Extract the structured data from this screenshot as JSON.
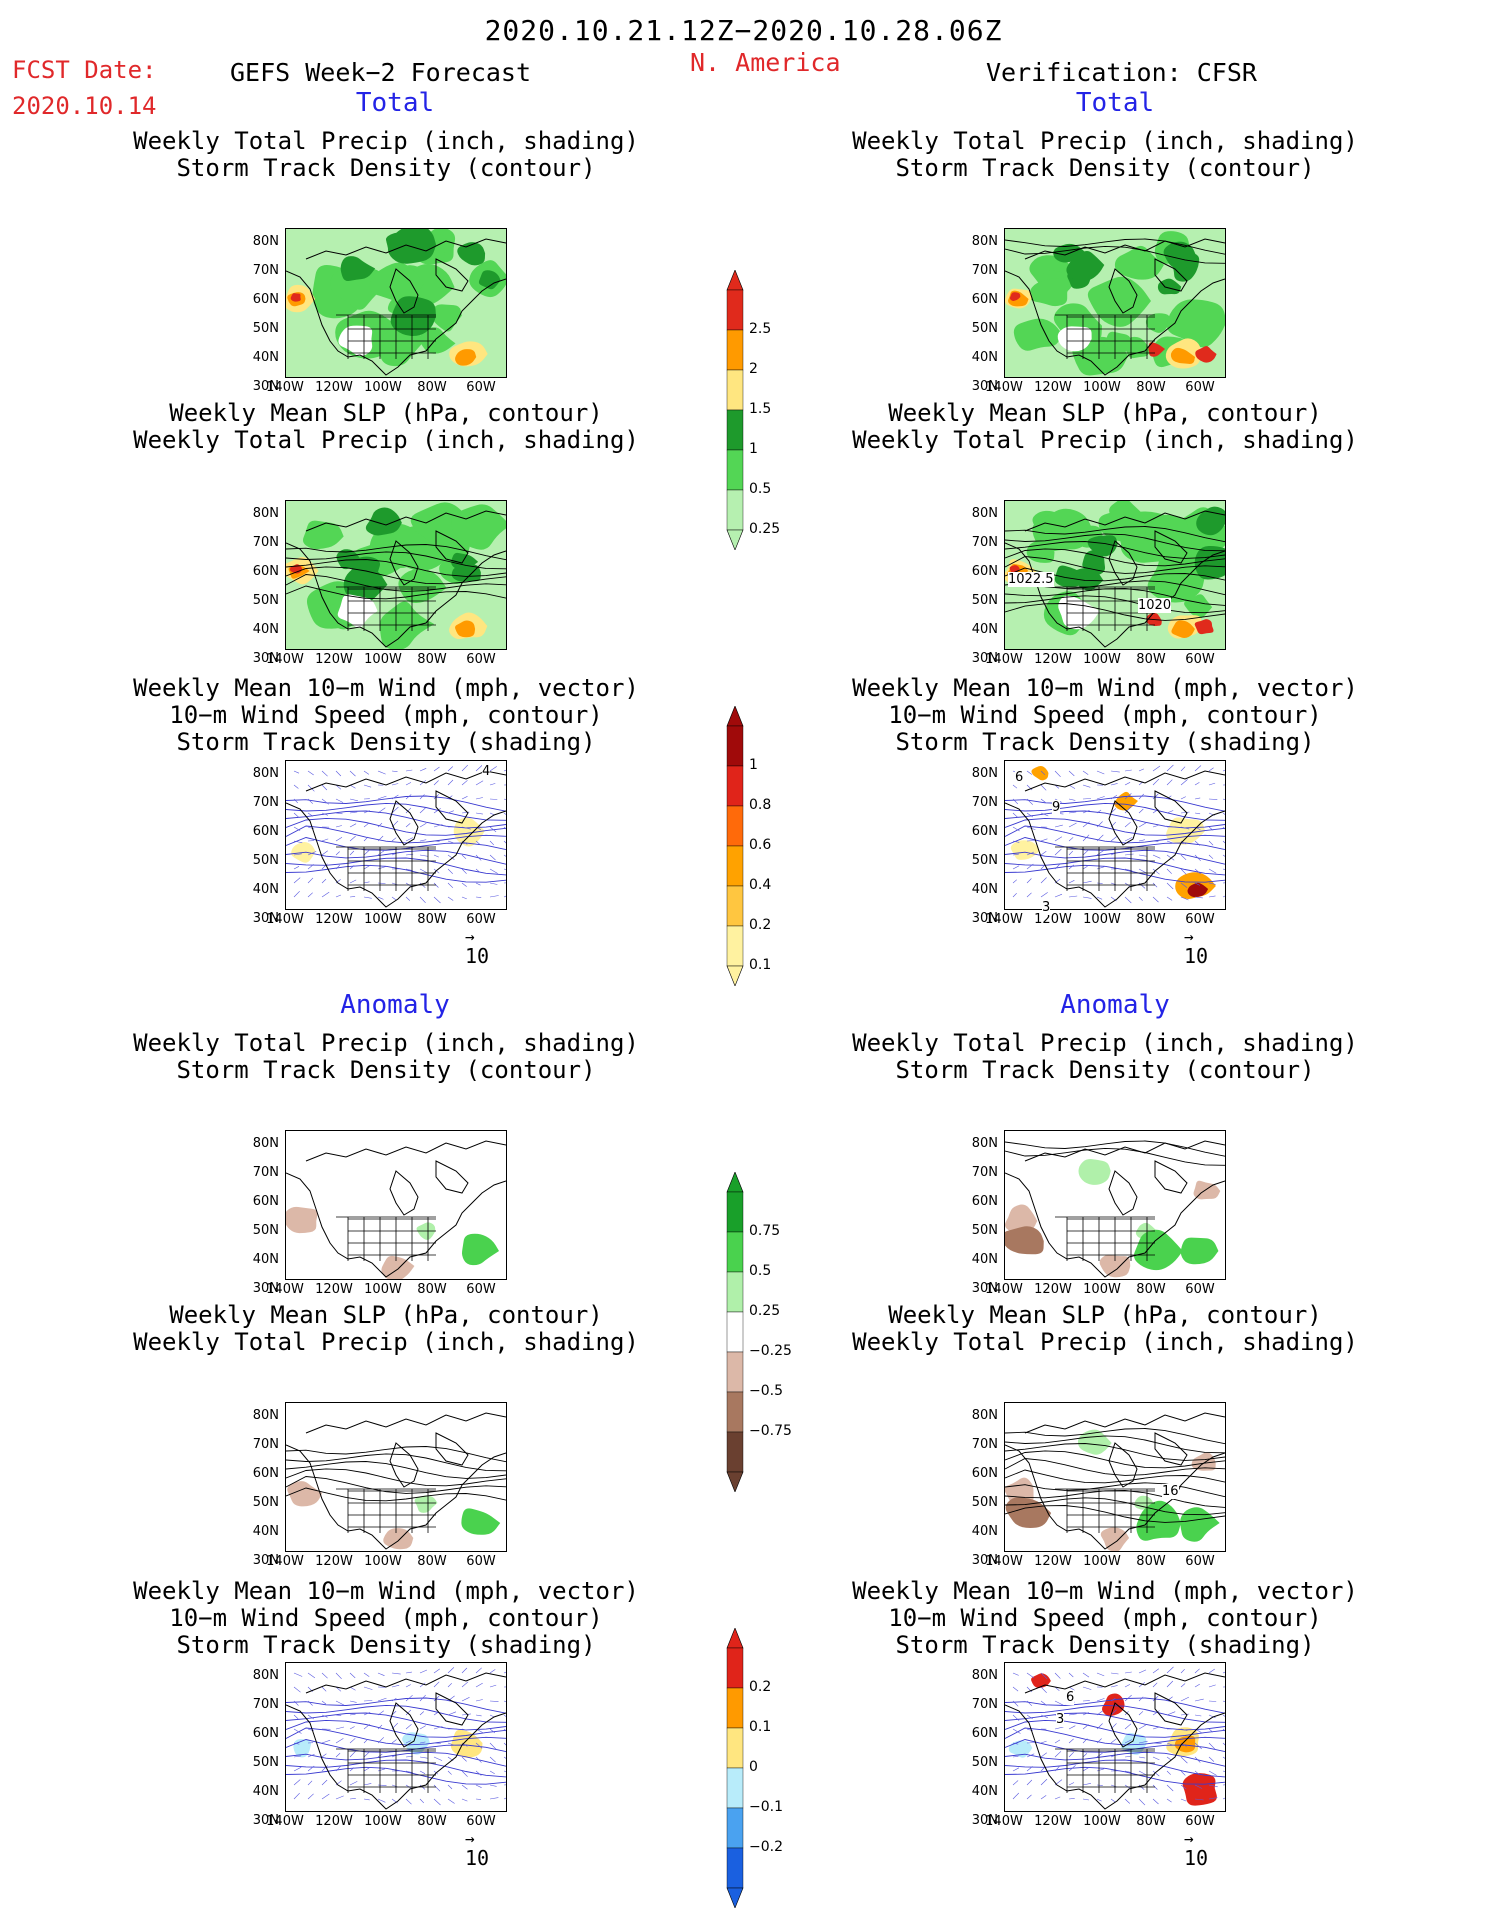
{
  "header": {
    "date_range": "2020.10.21.12Z−2020.10.28.06Z",
    "fcst_label": "FCST Date:",
    "fcst_date": "2020.10.14",
    "forecast_title": "GEFS Week−2 Forecast",
    "region": "N. America",
    "verification": "Verification: CFSR"
  },
  "sections": {
    "total": "Total",
    "anomaly": "Anomaly"
  },
  "titles": {
    "precip_storm": [
      "Weekly Total Precip (inch, shading)",
      "Storm Track Density (contour)"
    ],
    "slp_precip": [
      "Weekly Mean SLP (hPa, contour)",
      "Weekly Total Precip (inch, shading)"
    ],
    "wind_storm": [
      "Weekly Mean 10−m Wind (mph, vector)",
      "10−m Wind Speed (mph, contour)",
      "Storm Track Density (shading)"
    ]
  },
  "axes": {
    "lat": [
      "80N",
      "70N",
      "60N",
      "50N",
      "40N",
      "30N"
    ],
    "lon": [
      "140W",
      "120W",
      "100W",
      "80W",
      "60W"
    ]
  },
  "contour_labels": {
    "slp_total_cfsr": [
      "1022.5",
      "1020"
    ],
    "slp_anom_cfsr": [
      "16"
    ],
    "wind_total_cfsr": [
      "6",
      "9",
      "3"
    ],
    "wind_total_gefs": [
      "4"
    ],
    "wind_anom_cfsr": [
      "6",
      "3"
    ]
  },
  "vector_reference": "10",
  "colorbars": {
    "precip_total": {
      "labels": [
        "2.5",
        "2",
        "1.5",
        "1",
        "0.5",
        "0.25"
      ],
      "colors": [
        "#e02a1c",
        "#ff9a00",
        "#ffe680",
        "#1e9a2c",
        "#53d655",
        "#b6f0b0"
      ]
    },
    "storm_total": {
      "labels": [
        "1",
        "0.8",
        "0.6",
        "0.4",
        "0.2",
        "0.1"
      ],
      "colors": [
        "#a00a0a",
        "#e0241a",
        "#ff6a0a",
        "#ffa200",
        "#ffc640",
        "#fff2a0"
      ]
    },
    "precip_anom": {
      "labels": [
        "0.75",
        "0.5",
        "0.25",
        "−0.25",
        "−0.5",
        "−0.75"
      ],
      "colors": [
        "#19a02a",
        "#4ad24e",
        "#b0f0aa",
        "#ffffff",
        "#dcb8a8",
        "#a87860",
        "#6a4030"
      ]
    },
    "storm_anom": {
      "labels": [
        "0.2",
        "0.1",
        "0",
        "−0.1",
        "−0.2"
      ],
      "colors": [
        "#e0241a",
        "#ff9a00",
        "#ffe680",
        "#b8ecfa",
        "#4aa2f0",
        "#1a60e0"
      ]
    }
  }
}
